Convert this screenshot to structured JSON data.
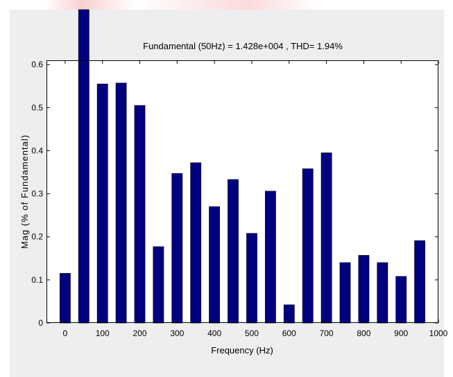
{
  "chart_data": {
    "type": "bar",
    "title": "Fundamental (50Hz) = 1.428e+004 , THD= 1.94%",
    "xlabel": "Frequency (Hz)",
    "ylabel": "Mag (% of Fundamental)",
    "xlim": [
      -50,
      1000
    ],
    "ylim": [
      0,
      0.61
    ],
    "xticks": [
      0,
      100,
      200,
      300,
      400,
      500,
      600,
      700,
      800,
      900,
      1000
    ],
    "yticks": [
      0,
      0.1,
      0.2,
      0.3,
      0.4,
      0.5,
      0.6
    ],
    "ytick_labels": [
      "0",
      "0.1",
      "0.2",
      "0.3",
      "0.4",
      "0.5",
      "0.6"
    ],
    "bar_color": "#000080",
    "grid": false,
    "x": [
      0,
      50,
      100,
      150,
      200,
      250,
      300,
      350,
      400,
      450,
      500,
      550,
      600,
      650,
      700,
      750,
      800,
      850,
      900,
      950
    ],
    "values": [
      0.115,
      0.61,
      0.555,
      0.557,
      0.505,
      0.177,
      0.347,
      0.372,
      0.27,
      0.333,
      0.208,
      0.306,
      0.042,
      0.358,
      0.395,
      0.14,
      0.157,
      0.14,
      0.108,
      0.191
    ]
  }
}
